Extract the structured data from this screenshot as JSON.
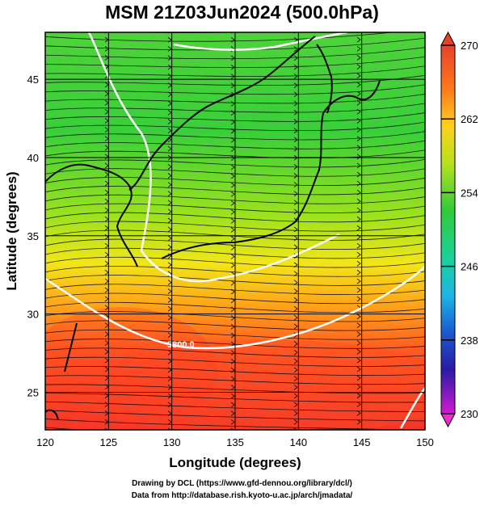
{
  "title": "MSM 21Z03Jun2024 (500.0hPa)",
  "x_axis_label": "Longitude (degrees)",
  "y_axis_label": "Latitude  (degrees)",
  "x_ticks": [
    "120",
    "125",
    "130",
    "135",
    "140",
    "145",
    "150"
  ],
  "y_ticks": [
    "25",
    "30",
    "35",
    "40",
    "45"
  ],
  "colorbar_ticks": [
    "270",
    "262",
    "254",
    "246",
    "238",
    "230"
  ],
  "contour_label": "5800.0",
  "credits": {
    "line1": "Drawing by DCL (https://www.gfd-dennou.org/library/dcl/)",
    "line2": "Data from http://database.rish.kyoto-u.ac.jp/arch/jmadata/"
  },
  "colors": {
    "cold": "#00cc33",
    "mid": "#ffee00",
    "warm": "#ff3300",
    "contour": "#ffffff"
  }
}
